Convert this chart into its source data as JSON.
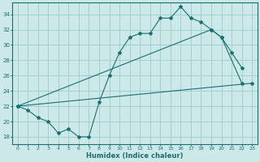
{
  "title": "",
  "xlabel": "Humidex (Indice chaleur)",
  "bg_color": "#cce8e8",
  "line_color": "#1a7070",
  "grid_color": "#99cccc",
  "xlim": [
    -0.5,
    23.5
  ],
  "ylim": [
    17.0,
    35.5
  ],
  "xticks": [
    0,
    1,
    2,
    3,
    4,
    5,
    6,
    7,
    8,
    9,
    10,
    11,
    12,
    13,
    14,
    15,
    16,
    17,
    18,
    19,
    20,
    21,
    22,
    23
  ],
  "yticks": [
    18,
    20,
    22,
    24,
    26,
    28,
    30,
    32,
    34
  ],
  "line1_x": [
    0,
    1,
    2,
    3,
    4,
    5,
    6,
    7,
    8,
    9,
    10,
    11,
    12,
    13,
    14,
    15,
    16,
    17,
    18,
    19,
    20,
    21,
    22
  ],
  "line1_y": [
    22,
    21.5,
    20.5,
    20,
    18.5,
    19,
    18,
    18,
    22.5,
    26,
    29,
    31,
    31.5,
    31.5,
    33.5,
    33.5,
    35,
    33.5,
    33,
    32,
    31,
    29,
    27
  ],
  "line2_x": [
    0,
    19,
    20,
    22
  ],
  "line2_y": [
    22,
    32,
    31,
    25
  ],
  "line3_x": [
    0,
    23
  ],
  "line3_y": [
    22,
    25
  ]
}
